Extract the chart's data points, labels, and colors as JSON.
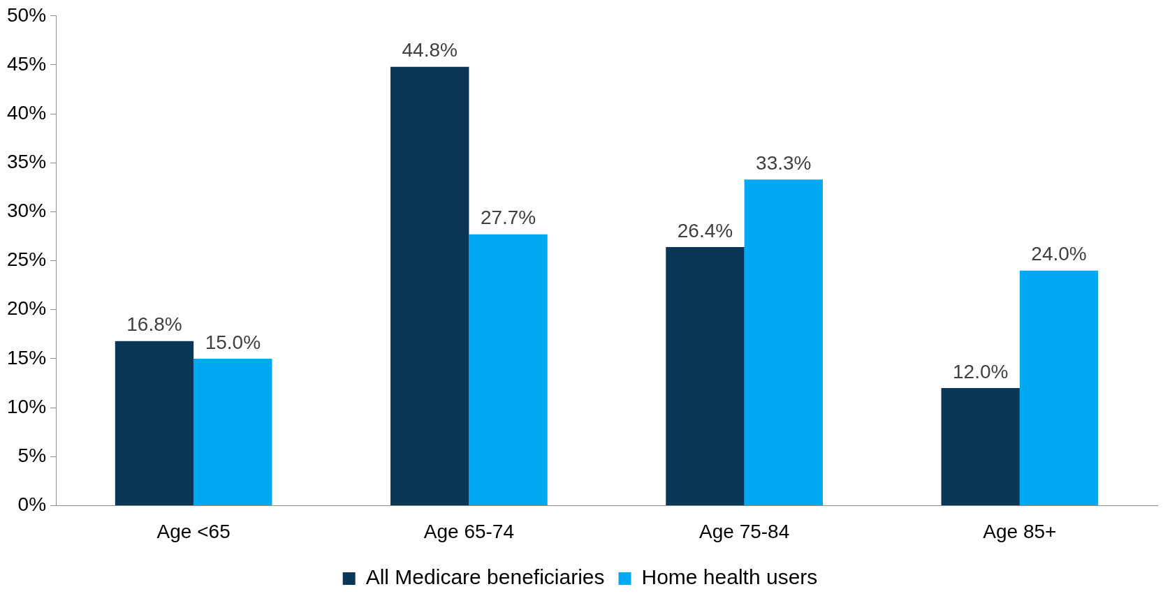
{
  "chart_data": {
    "type": "bar",
    "categories": [
      "Age <65",
      "Age 65-74",
      "Age 75-84",
      "Age 85+"
    ],
    "series": [
      {
        "name": "All Medicare beneficiaries",
        "color": "#0a3758",
        "values": [
          16.8,
          44.8,
          26.4,
          12.0
        ],
        "value_labels": [
          "16.8%",
          "44.8%",
          "26.4%",
          "12.0%"
        ]
      },
      {
        "name": "Home health users",
        "color": "#00a9f1",
        "values": [
          15.0,
          27.7,
          33.3,
          24.0
        ],
        "value_labels": [
          "15.0%",
          "27.7%",
          "33.3%",
          "24.0%"
        ]
      }
    ],
    "ylim": [
      0,
      50
    ],
    "yticks": [
      {
        "value": 0,
        "label": "0%"
      },
      {
        "value": 5,
        "label": "5%"
      },
      {
        "value": 10,
        "label": "10%"
      },
      {
        "value": 15,
        "label": "15%"
      },
      {
        "value": 20,
        "label": "20%"
      },
      {
        "value": 25,
        "label": "25%"
      },
      {
        "value": 30,
        "label": "30%"
      },
      {
        "value": 35,
        "label": "35%"
      },
      {
        "value": 40,
        "label": "40%"
      },
      {
        "value": 45,
        "label": "45%"
      },
      {
        "value": 50,
        "label": "50%"
      }
    ],
    "grid": false,
    "legend": "bottom"
  }
}
